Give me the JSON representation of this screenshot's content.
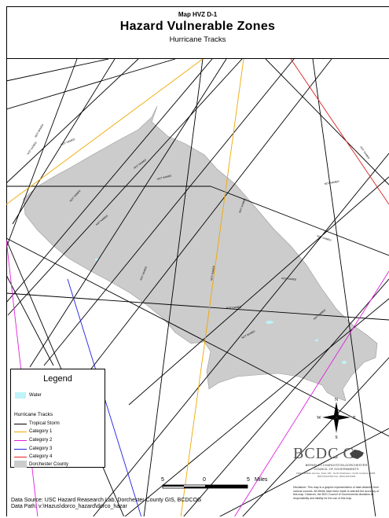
{
  "header": {
    "map_number": "Map HVZ D-1",
    "title": "Hazard Vulnerable Zones",
    "subtitle": "Hurricane Tracks"
  },
  "legend": {
    "title": "Legend",
    "water_label": "Water",
    "tracks_heading": "Hurricane Tracks",
    "items": [
      {
        "label": "Tropical Storm",
        "color": "#000000"
      },
      {
        "label": "Category 1",
        "color": "#f0a800"
      },
      {
        "label": "Category 2",
        "color": "#e020e0"
      },
      {
        "label": "Category 3",
        "color": "#2020e0"
      },
      {
        "label": "Category 4",
        "color": "#e02020"
      }
    ],
    "county_label": "Dorchester County",
    "water_color": "#bdf3f9",
    "county_color": "#cccccc"
  },
  "scale": {
    "left_label": "5",
    "center_label": "0",
    "right_label": "5",
    "units": "Miles"
  },
  "footer": {
    "data_source": "Data Source: USC Hazard Reasearch Lab, Dorchester County GIS, BCDCOG",
    "data_path": "Data Path: v:\\Hazus\\dorco_hazard\\dorco_hazar"
  },
  "north_arrow": {
    "n": "N",
    "s": "S",
    "e": "E",
    "w": "W"
  },
  "bcdcog": {
    "logo": "BCDC G",
    "org_line1": "BERKELEY-CHARLESTON-DORCHESTER",
    "org_line2": "COUNCIL OF GOVERNMENTS",
    "address": "1362 McMillan Avenue, Suite 100 · North Charleston, South Carolina 29405 · (843) 529-0400 Fax: (843) 529-0305",
    "disclaimer": "Disclaimer: This map is a graphic representation of data obtained from various sources. All efforts have been made to warrant the accuracy of this map. However, the BCD Council of Governments disclaims all responsibility and liability for the use of this map."
  },
  "map": {
    "track_label": "NOT NAMED",
    "county_name": "Dorchester County"
  }
}
